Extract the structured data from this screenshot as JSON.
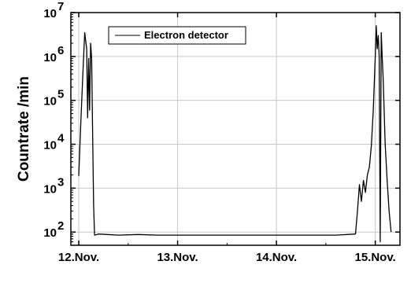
{
  "chart_data": {
    "type": "line",
    "ylabel": "Countrate /min",
    "xlabel": "",
    "y_scale": "log",
    "ylim": [
      50,
      10000000
    ],
    "xlim": [
      11.92,
      15.25
    ],
    "grid": true,
    "legend_position": "top-left",
    "x_ticks": [
      {
        "value": 12,
        "label": "12.Nov."
      },
      {
        "value": 13,
        "label": "13.Nov."
      },
      {
        "value": 14,
        "label": "14.Nov."
      },
      {
        "value": 15,
        "label": "15.Nov."
      }
    ],
    "y_ticks": [
      {
        "value": 100,
        "base": "10",
        "exp": "2"
      },
      {
        "value": 1000,
        "base": "10",
        "exp": "3"
      },
      {
        "value": 10000,
        "base": "10",
        "exp": "4"
      },
      {
        "value": 100000,
        "base": "10",
        "exp": "5"
      },
      {
        "value": 1000000,
        "base": "10",
        "exp": "6"
      },
      {
        "value": 10000000,
        "base": "10",
        "exp": "7"
      }
    ],
    "series": [
      {
        "name": "Electron detector",
        "color": "#000000",
        "x": [
          12.0,
          12.02,
          12.04,
          12.06,
          12.08,
          12.09,
          12.1,
          12.11,
          12.12,
          12.13,
          12.14,
          12.15,
          12.16,
          12.2,
          12.4,
          12.6,
          12.8,
          13.0,
          13.2,
          13.4,
          13.6,
          13.8,
          14.0,
          14.2,
          14.4,
          14.6,
          14.8,
          14.82,
          14.84,
          14.86,
          14.88,
          14.9,
          14.92,
          14.94,
          14.96,
          14.98,
          15.0,
          15.01,
          15.02,
          15.03,
          15.04,
          15.05,
          15.06,
          15.07,
          15.08,
          15.1,
          15.12,
          15.14,
          15.16
        ],
        "y": [
          1900,
          30000,
          350000,
          3500000,
          1500000,
          40000,
          900000,
          60000,
          2000000,
          900000,
          20000,
          400,
          85,
          90,
          85,
          88,
          85,
          85,
          85,
          85,
          85,
          85,
          85,
          85,
          85,
          85,
          90,
          300,
          1200,
          500,
          1500,
          800,
          2000,
          3000,
          9000,
          60000,
          1000000,
          5000000,
          1500000,
          3000000,
          1000000,
          60,
          3500000,
          1000000,
          300000,
          10000,
          1500,
          300,
          100
        ]
      }
    ]
  }
}
